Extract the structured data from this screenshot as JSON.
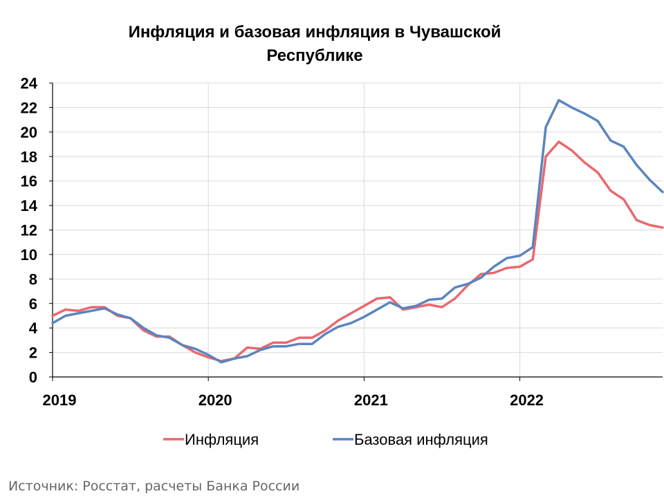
{
  "chart_data": {
    "type": "line",
    "title": "Инфляция и базовая инфляция в Чувашской Республике",
    "title_lines": [
      "Инфляция и базовая инфляция в Чувашской",
      "Республике"
    ],
    "xlabel": "",
    "ylabel": "",
    "ylim": [
      0,
      24
    ],
    "yticks": [
      0,
      2,
      4,
      6,
      8,
      10,
      12,
      14,
      16,
      18,
      20,
      22,
      24
    ],
    "xlim": [
      "2019-01",
      "2022-12"
    ],
    "xtick_labels": [
      "2019",
      "2020",
      "2021",
      "2022"
    ],
    "grid": true,
    "legend_placement": "bottom",
    "x": [
      "2019-01",
      "2019-02",
      "2019-03",
      "2019-04",
      "2019-05",
      "2019-06",
      "2019-07",
      "2019-08",
      "2019-09",
      "2019-10",
      "2019-11",
      "2019-12",
      "2020-01",
      "2020-02",
      "2020-03",
      "2020-04",
      "2020-05",
      "2020-06",
      "2020-07",
      "2020-08",
      "2020-09",
      "2020-10",
      "2020-11",
      "2020-12",
      "2021-01",
      "2021-02",
      "2021-03",
      "2021-04",
      "2021-05",
      "2021-06",
      "2021-07",
      "2021-08",
      "2021-09",
      "2021-10",
      "2021-11",
      "2021-12",
      "2022-01",
      "2022-02",
      "2022-03",
      "2022-04",
      "2022-05",
      "2022-06",
      "2022-07",
      "2022-08",
      "2022-09",
      "2022-10",
      "2022-11",
      "2022-12"
    ],
    "series": [
      {
        "name": "Инфляция",
        "color": "#e8696e",
        "values": [
          5.0,
          5.5,
          5.4,
          5.7,
          5.7,
          5.0,
          4.8,
          3.8,
          3.3,
          3.3,
          2.6,
          2.0,
          1.6,
          1.3,
          1.5,
          2.4,
          2.3,
          2.8,
          2.8,
          3.2,
          3.2,
          3.8,
          4.6,
          5.2,
          5.8,
          6.4,
          6.5,
          5.5,
          5.7,
          5.9,
          5.7,
          6.4,
          7.5,
          8.4,
          8.5,
          8.9,
          9.0,
          9.6,
          18.0,
          19.2,
          18.5,
          17.5,
          16.7,
          15.2,
          14.5,
          12.8,
          12.4,
          12.2
        ]
      },
      {
        "name": "Базовая инфляция",
        "color": "#5a85be",
        "values": [
          4.4,
          5.0,
          5.2,
          5.4,
          5.6,
          5.1,
          4.8,
          4.0,
          3.4,
          3.2,
          2.6,
          2.3,
          1.8,
          1.2,
          1.5,
          1.7,
          2.2,
          2.5,
          2.5,
          2.7,
          2.7,
          3.5,
          4.1,
          4.4,
          4.9,
          5.5,
          6.1,
          5.6,
          5.8,
          6.3,
          6.4,
          7.3,
          7.6,
          8.1,
          9.0,
          9.7,
          9.9,
          10.6,
          20.4,
          22.6,
          22.0,
          21.5,
          20.9,
          19.3,
          18.8,
          17.3,
          16.1,
          15.1
        ]
      }
    ]
  },
  "source_note": "Источник: Росстат, расчеты Банка России"
}
